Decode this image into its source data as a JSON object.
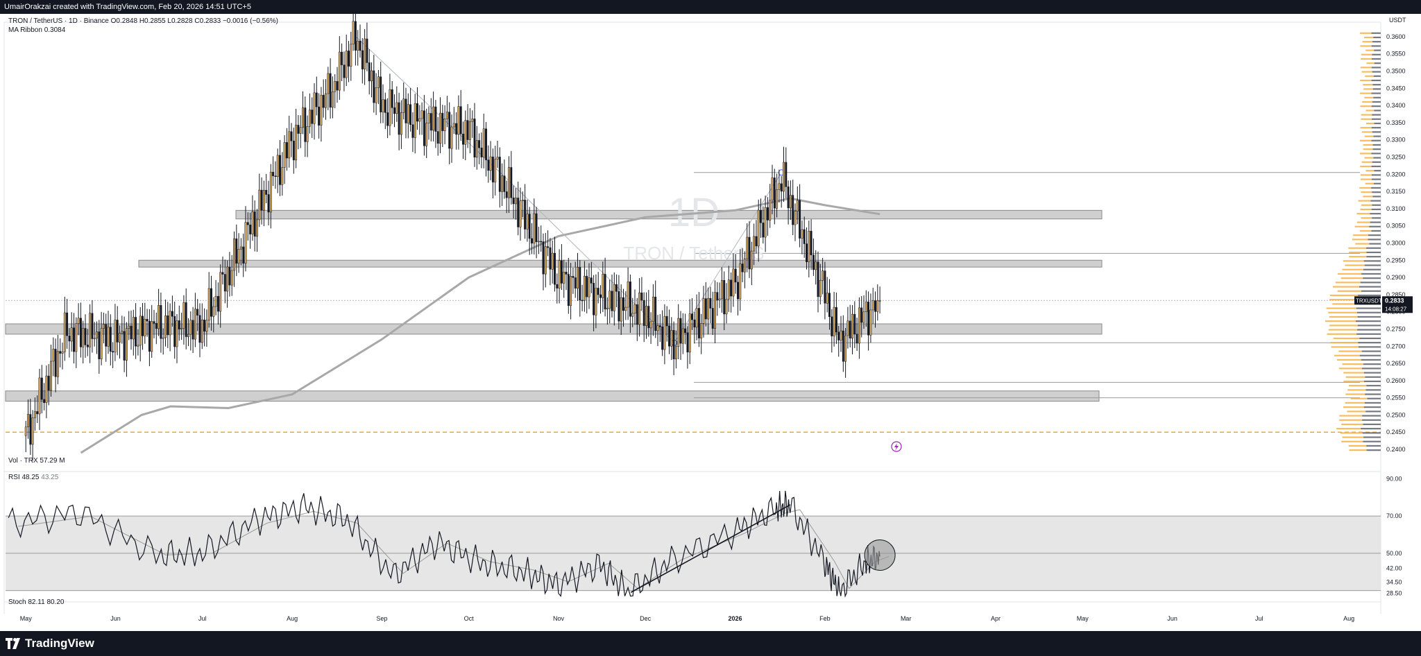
{
  "header": {
    "text": "UmairOrakzai created with TradingView.com, Feb 20, 2026 14:51 UTC+5"
  },
  "legend": {
    "symbol_line": "TRON / TetherUS · 1D · Binance",
    "ohlc": {
      "open": "O0.2848",
      "high": "H0.2855",
      "low": "L0.2828",
      "close": "C0.2833",
      "change": "−0.0016 (−0.56%)"
    },
    "ma_ribbon": {
      "label": "MA Ribbon",
      "value": "0.3084"
    },
    "volume": {
      "label": "Vol · TRX",
      "value": "57.29 M"
    },
    "rsi": {
      "label": "RSI",
      "value": "48.25",
      "value2": "43.25"
    },
    "stoch": {
      "label": "Stoch",
      "value": "82.11",
      "value2": "80.20"
    }
  },
  "watermark": {
    "interval": "1D",
    "name": "TRON / TetherUS"
  },
  "price_axis": {
    "currency": "USDT",
    "ticks": [
      "0.3600",
      "0.3550",
      "0.3500",
      "0.3450",
      "0.3400",
      "0.3350",
      "0.3300",
      "0.3250",
      "0.3200",
      "0.3150",
      "0.3100",
      "0.3050",
      "0.3000",
      "0.2950",
      "0.2900",
      "0.2850",
      "0.2800",
      "0.2750",
      "0.2700",
      "0.2650",
      "0.2600",
      "0.2550",
      "0.2500",
      "0.2450",
      "0.2400"
    ],
    "current_symbol": "TRXUSDT",
    "current_price": "0.2833",
    "countdown": "14:08:27"
  },
  "rsi_axis": {
    "ticks": [
      "90.00",
      "70.00",
      "50.00",
      "42.00",
      "34.50",
      "28.50"
    ]
  },
  "time_axis": {
    "labels": [
      "May",
      "Jun",
      "Jul",
      "Aug",
      "Sep",
      "Oct",
      "Nov",
      "Dec",
      "2026",
      "Feb",
      "Mar",
      "Apr",
      "May",
      "Jun",
      "Jul",
      "Aug"
    ]
  },
  "footer": {
    "brand": "TradingView"
  },
  "colors": {
    "bull": "#d4a45a",
    "bear": "#131722",
    "zone": "#cfcfcf",
    "dashed_level": "#f5a623",
    "ma": "#a8a8a8",
    "volume_profile_up": "#f7b044",
    "volume_profile_down": "#5d606b"
  },
  "chart_data": [
    {
      "type": "candlestick",
      "symbol": "TRXUSDT",
      "interval": "1D",
      "ylim": [
        0.239,
        0.363
      ],
      "x_range": [
        "2025-04-24",
        "2026-08-12"
      ],
      "x": [
        "2025-05-01",
        "2025-05-15",
        "2025-06-01",
        "2025-06-15",
        "2025-07-01",
        "2025-07-15",
        "2025-08-01",
        "2025-08-15",
        "2025-08-23",
        "2025-09-01",
        "2025-09-15",
        "2025-10-01",
        "2025-10-15",
        "2025-11-01",
        "2025-11-15",
        "2025-12-01",
        "2025-12-11",
        "2026-01-01",
        "2026-01-17",
        "2026-02-01",
        "2026-02-06",
        "2026-02-20"
      ],
      "close": [
        0.244,
        0.274,
        0.272,
        0.276,
        0.276,
        0.3,
        0.33,
        0.345,
        0.36,
        0.34,
        0.335,
        0.333,
        0.315,
        0.29,
        0.285,
        0.28,
        0.271,
        0.288,
        0.319,
        0.285,
        0.271,
        0.2833
      ],
      "last": {
        "open": 0.2848,
        "high": 0.2855,
        "low": 0.2828,
        "close": 0.2833,
        "change": -0.0016,
        "change_pct": -0.56
      },
      "zones": [
        [
          0.307,
          0.3095
        ],
        [
          0.293,
          0.295
        ],
        [
          0.2735,
          0.2765
        ],
        [
          0.254,
          0.257
        ]
      ],
      "levels": [
        0.3205,
        0.297,
        0.271,
        0.2595,
        0.255
      ],
      "dashed_level": 0.245,
      "ma_ribbon_value": 0.3084
    },
    {
      "type": "line",
      "name": "RSI",
      "ylim": [
        25,
        92
      ],
      "bands": [
        30,
        50,
        70
      ],
      "x": [
        "2025-04-25",
        "2025-05-20",
        "2025-06-15",
        "2025-07-01",
        "2025-07-20",
        "2025-08-05",
        "2025-08-20",
        "2025-09-05",
        "2025-09-20",
        "2025-10-05",
        "2025-10-20",
        "2025-11-01",
        "2025-11-15",
        "2025-11-25",
        "2025-12-10",
        "2026-01-01",
        "2026-01-15",
        "2026-01-20",
        "2026-02-01",
        "2026-02-06",
        "2026-02-15",
        "2026-02-20"
      ],
      "values": [
        66,
        72,
        49,
        50,
        68,
        75,
        68,
        38,
        56,
        45,
        40,
        33,
        44,
        29,
        46,
        62,
        74,
        76,
        45,
        29,
        45,
        48.25
      ],
      "signal_last": 43.25
    }
  ]
}
